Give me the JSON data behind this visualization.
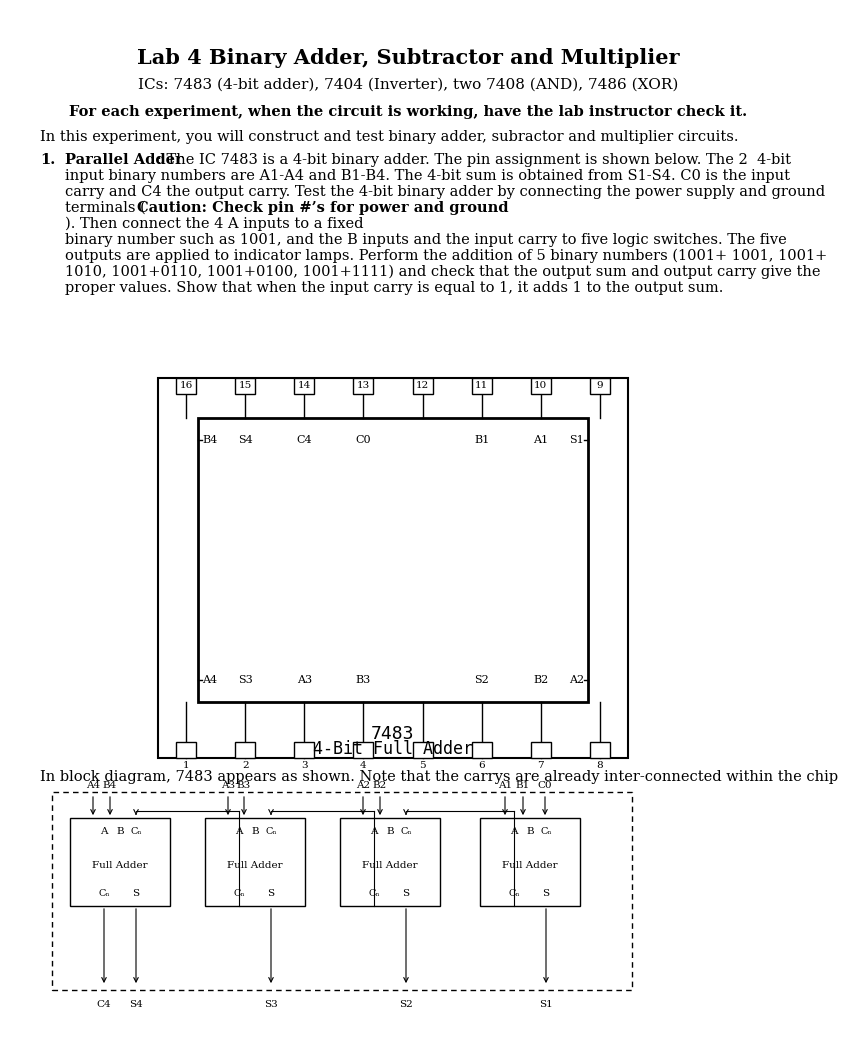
{
  "title": "Lab 4 Binary Adder, Subtractor and Multiplier",
  "subtitle": "ICs: 7483 (4-bit adder), 7404 (Inverter), two 7408 (AND), 7486 (XOR)",
  "bold_line": "For each experiment, when the circuit is working, have the lab instructor check it.",
  "intro": "In this experiment, you will construct and test binary adder, subractor and multiplier circuits.",
  "para1_line1": ": The IC 7483 is a 4-bit binary adder. The pin assignment is shown below. The 2  4-bit",
  "para1_line2": "input binary numbers are A1-A4 and B1-B4. The 4-bit sum is obtained from S1-S4. C0 is the input",
  "para1_line3": "carry and C4 the output carry. Test the 4-bit binary adder by connecting the power supply and ground",
  "para1_line4": "terminals (",
  "caution": "Caution: Check pin #’s for power and ground",
  "para2_line1": "). Then connect the 4 A inputs to a fixed",
  "para2_line2": "binary number such as 1001, and the B inputs and the input carry to five logic switches. The five",
  "para2_line3": "outputs are applied to indicator lamps. Perform the addition of 5 binary numbers (1001+ 1001, 1001+",
  "para2_line4": "1010, 1001+0110, 1001+0100, 1001+1111) and check that the output sum and output carry give the",
  "para2_line5": "proper values. Show that when the input carry is equal to 1, it adds 1 to the output sum.",
  "ic_label": "7483",
  "ic_sublabel": "4-Bit Full Adder",
  "top_pins": [
    "16",
    "15",
    "14",
    "13",
    "12",
    "11",
    "10",
    "9"
  ],
  "bottom_pins": [
    "1",
    "2",
    "3",
    "4",
    "5",
    "6",
    "7",
    "8"
  ],
  "top_inner": [
    "B4",
    "S4",
    "C4",
    "C0",
    "",
    "B1",
    "A1",
    "S1"
  ],
  "bottom_inner": [
    "A4",
    "S3",
    "A3",
    "B3",
    "",
    "S2",
    "B2",
    "A2"
  ],
  "block_text": "In block diagram, 7483 appears as shown. Note that the carrys are already inter-connected within the chip",
  "bg_color": "#ffffff",
  "text_color": "#000000"
}
